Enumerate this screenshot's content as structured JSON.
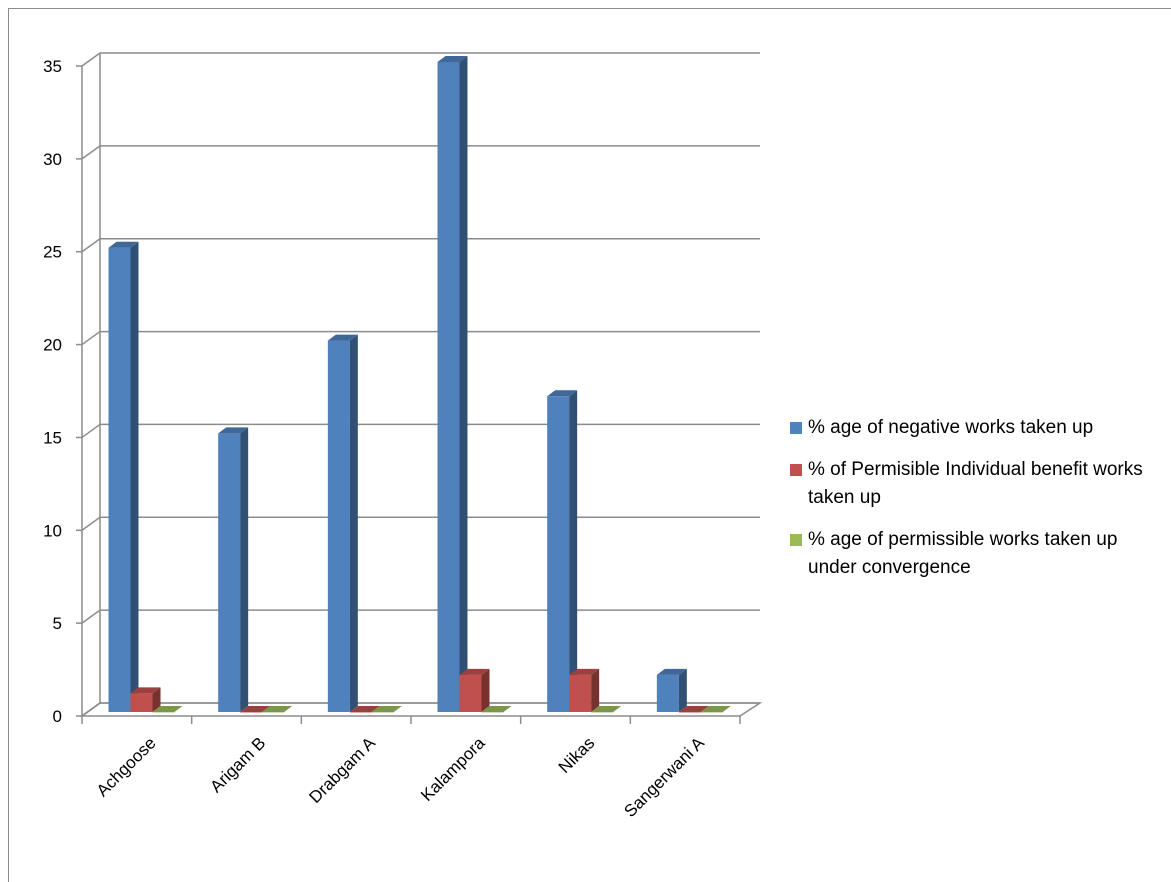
{
  "chart_data": {
    "type": "bar",
    "categories": [
      "Achgoose",
      "Arigam B",
      "Drabgam A",
      "Kalampora",
      "Nikas",
      "Sangerwani A"
    ],
    "series": [
      {
        "name": "% age of negative works taken up",
        "values": [
          25,
          15,
          20,
          35,
          17,
          2
        ],
        "color": "#4f81bd"
      },
      {
        "name": "% of Permisible Individual benefit works taken up",
        "values": [
          1,
          0,
          0,
          2,
          2,
          0
        ],
        "color": "#c0504d"
      },
      {
        "name": "% age of permissible works taken up under convergence",
        "values": [
          0,
          0,
          0,
          0,
          0,
          0
        ],
        "color": "#9bbb59"
      }
    ],
    "yticks": [
      "0",
      "5",
      "10",
      "15",
      "20",
      "25",
      "30",
      "35"
    ],
    "ylim": [
      0,
      35
    ],
    "grid": true,
    "legend_position": "right",
    "style": "3d-column"
  }
}
